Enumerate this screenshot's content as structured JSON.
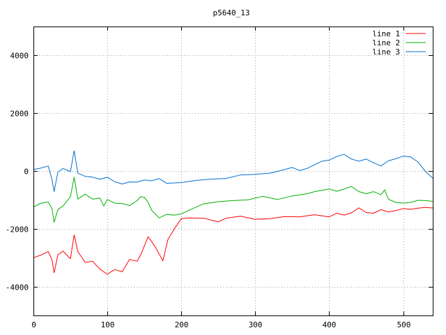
{
  "chart_data": {
    "type": "line",
    "title": "p5640_13",
    "xlabel": "",
    "ylabel": "",
    "xlim": [
      0,
      540
    ],
    "ylim": [
      -5000,
      5000
    ],
    "xticks": [
      0,
      100,
      200,
      300,
      400,
      500
    ],
    "yticks": [
      -4000,
      -2000,
      0,
      2000,
      4000
    ],
    "grid": true,
    "legend_position": "top-right",
    "series": [
      {
        "name": "line 1",
        "color": "#ff0000",
        "x": [
          0,
          10,
          20,
          25,
          28,
          33,
          40,
          50,
          55,
          60,
          70,
          80,
          90,
          100,
          105,
          110,
          120,
          130,
          140,
          145,
          155,
          165,
          175,
          178,
          182,
          190,
          200,
          210,
          230,
          250,
          260,
          280,
          300,
          320,
          340,
          360,
          380,
          400,
          410,
          420,
          430,
          440,
          450,
          460,
          470,
          480,
          490,
          500,
          510,
          520,
          530,
          540
        ],
        "y": [
          -3000,
          -2900,
          -2800,
          -3100,
          -3500,
          -2900,
          -2800,
          -3000,
          -2200,
          -2800,
          -3200,
          -3100,
          -3400,
          -3600,
          -3450,
          -3400,
          -3500,
          -3100,
          -3100,
          -2900,
          -2300,
          -2600,
          -3100,
          -2800,
          -2400,
          -2000,
          -1650,
          -1650,
          -1600,
          -1750,
          -1650,
          -1600,
          -1650,
          -1650,
          -1600,
          -1550,
          -1500,
          -1600,
          -1500,
          -1500,
          -1450,
          -1300,
          -1400,
          -1450,
          -1350,
          -1450,
          -1350,
          -1300,
          -1350,
          -1250,
          -1250,
          -1280
        ]
      },
      {
        "name": "line 2",
        "color": "#00b000",
        "x": [
          0,
          10,
          20,
          25,
          28,
          33,
          40,
          50,
          55,
          60,
          70,
          80,
          90,
          95,
          100,
          110,
          120,
          130,
          140,
          145,
          150,
          155,
          160,
          170,
          180,
          190,
          200,
          210,
          230,
          250,
          270,
          290,
          310,
          330,
          350,
          370,
          380,
          400,
          410,
          420,
          430,
          440,
          450,
          460,
          470,
          475,
          480,
          490,
          500,
          510,
          520,
          530,
          540
        ],
        "y": [
          -1250,
          -1150,
          -1050,
          -1300,
          -1800,
          -1300,
          -1200,
          -900,
          -250,
          -950,
          -800,
          -1000,
          -900,
          -1200,
          -1000,
          -1150,
          -1100,
          -1200,
          -1050,
          -850,
          -900,
          -1100,
          -1400,
          -1600,
          -1500,
          -1550,
          -1450,
          -1350,
          -1150,
          -1100,
          -1000,
          -1000,
          -900,
          -950,
          -850,
          -800,
          -750,
          -600,
          -700,
          -650,
          -500,
          -700,
          -800,
          -750,
          -800,
          -650,
          -1000,
          -1050,
          -1100,
          -1100,
          -1050,
          -1000,
          -1050
        ]
      },
      {
        "name": "line 3",
        "color": "#0070d0",
        "x": [
          0,
          10,
          20,
          25,
          28,
          33,
          40,
          50,
          55,
          60,
          70,
          80,
          90,
          100,
          110,
          120,
          130,
          140,
          150,
          160,
          170,
          180,
          200,
          220,
          240,
          260,
          280,
          300,
          320,
          340,
          350,
          360,
          370,
          380,
          390,
          400,
          410,
          420,
          430,
          440,
          450,
          460,
          470,
          480,
          490,
          500,
          510,
          520,
          530,
          540
        ],
        "y": [
          50,
          100,
          150,
          -250,
          -700,
          -50,
          50,
          0,
          700,
          -100,
          -150,
          -200,
          -300,
          -250,
          -350,
          -450,
          -400,
          -350,
          -300,
          -350,
          -300,
          -400,
          -400,
          -350,
          -250,
          -250,
          -150,
          -150,
          -50,
          50,
          100,
          50,
          100,
          200,
          300,
          400,
          500,
          550,
          450,
          350,
          400,
          250,
          200,
          350,
          400,
          550,
          500,
          300,
          -50,
          -250
        ]
      }
    ]
  }
}
